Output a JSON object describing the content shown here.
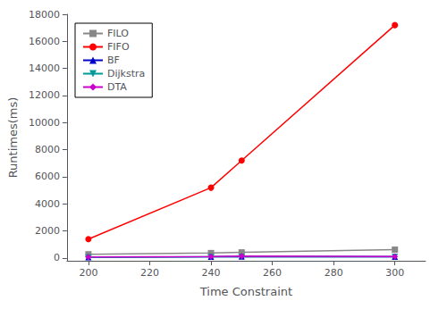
{
  "chart_data": {
    "type": "line",
    "xlabel": "Time Constraint",
    "ylabel": "Runtimes(ms)",
    "x": [
      200,
      240,
      250,
      300
    ],
    "series": [
      {
        "name": "FILO",
        "color": "#888888",
        "marker": "square",
        "values": [
          280,
          370,
          420,
          620
        ]
      },
      {
        "name": "FIFO",
        "color": "#ff0000",
        "marker": "circle",
        "values": [
          1400,
          5200,
          7200,
          17200
        ]
      },
      {
        "name": "BF",
        "color": "#0000cc",
        "marker": "triangle-up",
        "values": [
          60,
          100,
          120,
          100
        ]
      },
      {
        "name": "Dijkstra",
        "color": "#009999",
        "marker": "triangle-down",
        "values": [
          50,
          90,
          100,
          90
        ]
      },
      {
        "name": "DTA",
        "color": "#cc00cc",
        "marker": "diamond",
        "values": [
          80,
          120,
          140,
          120
        ]
      }
    ],
    "xlim": [
      193,
      310
    ],
    "ylim": [
      -200,
      18000
    ],
    "xticks": [
      200,
      220,
      240,
      260,
      280,
      300
    ],
    "yticks": [
      0,
      2000,
      4000,
      6000,
      8000,
      10000,
      12000,
      14000,
      16000,
      18000
    ],
    "grid": false,
    "legend": "upper-left"
  }
}
